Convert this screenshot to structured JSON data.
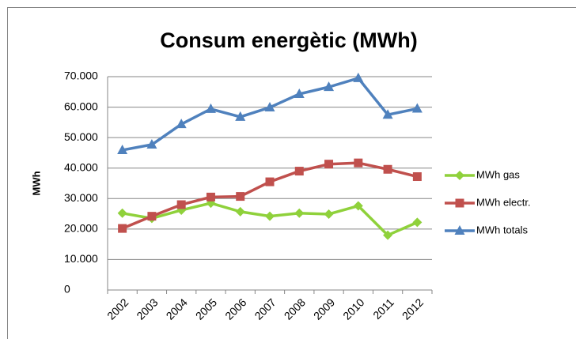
{
  "chart_data": {
    "type": "line",
    "title": "Consum energètic (MWh)",
    "y_label": "MWh",
    "categories": [
      "2002",
      "2003",
      "2004",
      "2005",
      "2006",
      "2007",
      "2008",
      "2009",
      "2010",
      "2011",
      "2012"
    ],
    "series": [
      {
        "name": "MWh gas",
        "color": "#8fd13b",
        "values": [
          25200,
          23500,
          26200,
          28500,
          25700,
          24200,
          25200,
          24900,
          27600,
          18000,
          22200
        ]
      },
      {
        "name": "MWh electr.",
        "color": "#c0504d",
        "values": [
          20200,
          24200,
          28000,
          30500,
          30700,
          35500,
          39000,
          41300,
          41700,
          39600,
          37200
        ]
      },
      {
        "name": "MWh totals",
        "color": "#4f81bd",
        "values": [
          45900,
          47700,
          54400,
          59400,
          56800,
          59900,
          64300,
          66600,
          69500,
          57500,
          59500
        ]
      }
    ],
    "ylim": [
      0,
      70000
    ],
    "yticks": [
      0,
      {
        "value": 10000,
        "label": "10.000"
      },
      {
        "value": 20000,
        "label": "20.000"
      },
      {
        "value": 30000,
        "label": "30.000"
      },
      {
        "value": 40000,
        "label": "40.000"
      },
      {
        "value": 50000,
        "label": "50.000"
      },
      {
        "value": 60000,
        "label": "60.000"
      },
      {
        "value": 70000,
        "label": "70.000"
      }
    ],
    "grid": true,
    "legend": "right"
  }
}
